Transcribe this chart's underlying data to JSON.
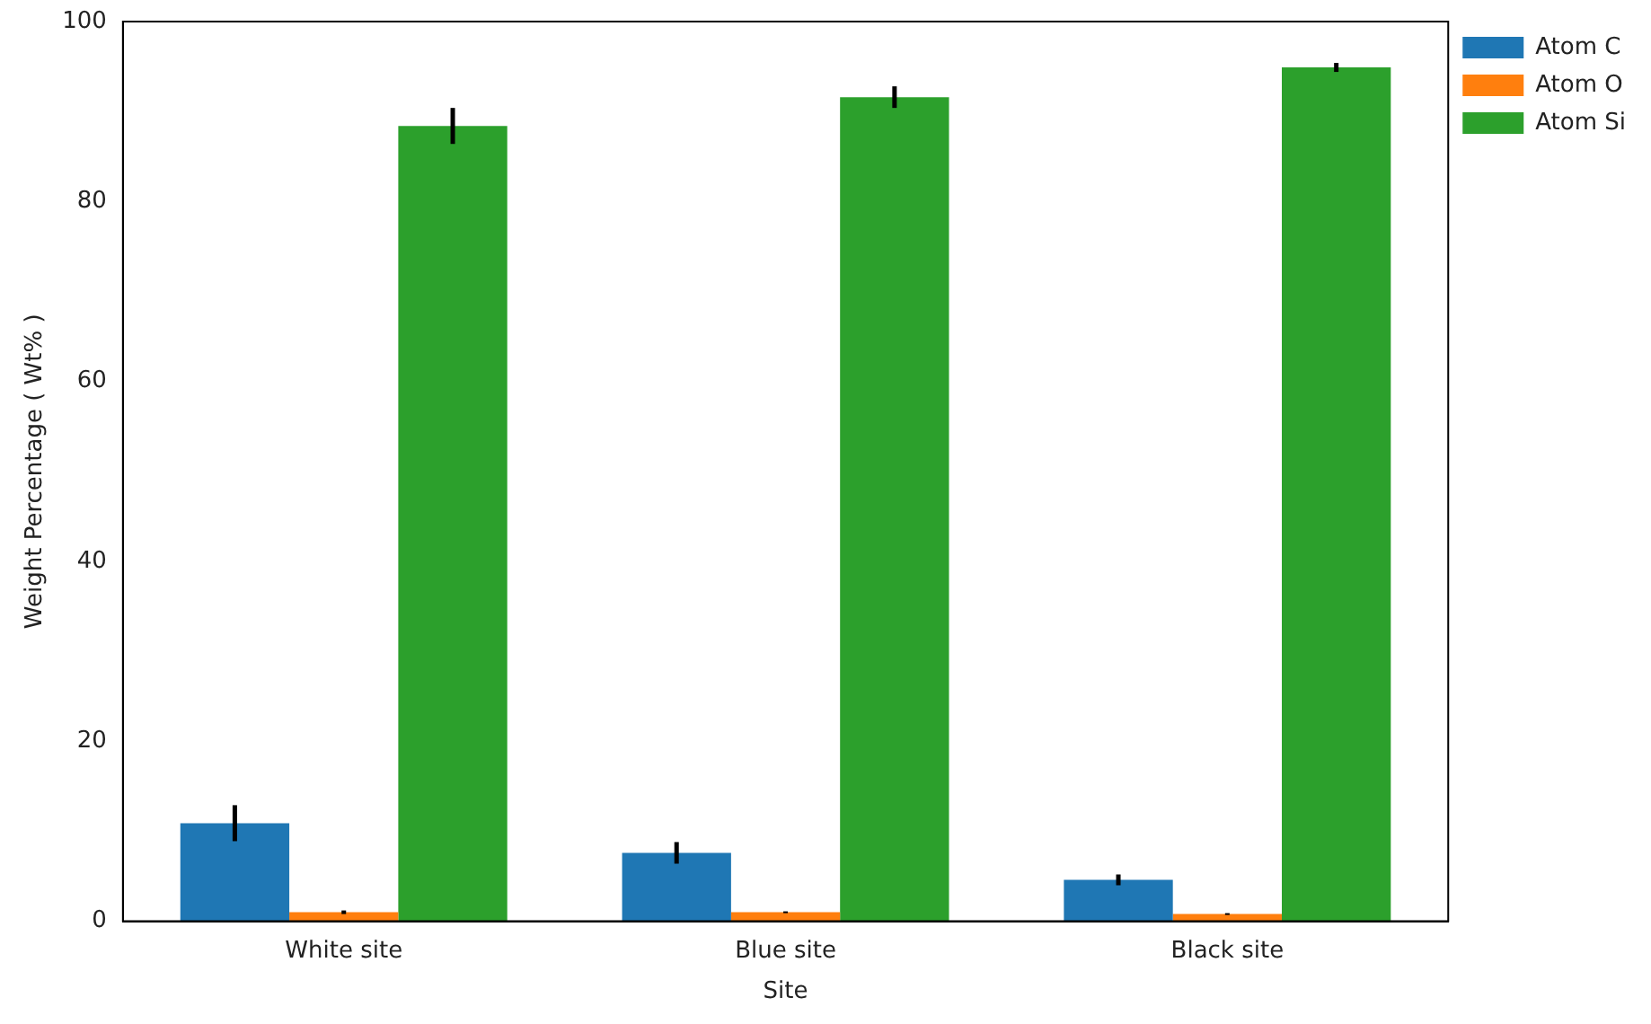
{
  "chart_data": {
    "type": "bar",
    "xlabel": "Site",
    "ylabel": "Weight Percentage ( Wt% )",
    "categories": [
      "White site",
      "Blue site",
      "Black site"
    ],
    "series": [
      {
        "name": "Atom C",
        "color": "#1f77b4",
        "values": [
          10.9,
          7.6,
          4.6
        ],
        "errors": [
          2.0,
          1.2,
          0.6
        ]
      },
      {
        "name": "Atom O",
        "color": "#ff7f0e",
        "values": [
          1.0,
          1.0,
          0.8
        ],
        "errors": [
          0.2,
          0.1,
          0.1
        ]
      },
      {
        "name": "Atom Si",
        "color": "#2ca02c",
        "values": [
          88.4,
          91.6,
          94.9
        ],
        "errors": [
          2.0,
          1.2,
          0.5
        ]
      }
    ],
    "ylim": [
      0,
      100
    ],
    "yticks": [
      0,
      20,
      40,
      60,
      80,
      100
    ],
    "grid": false,
    "legend": "top right"
  }
}
